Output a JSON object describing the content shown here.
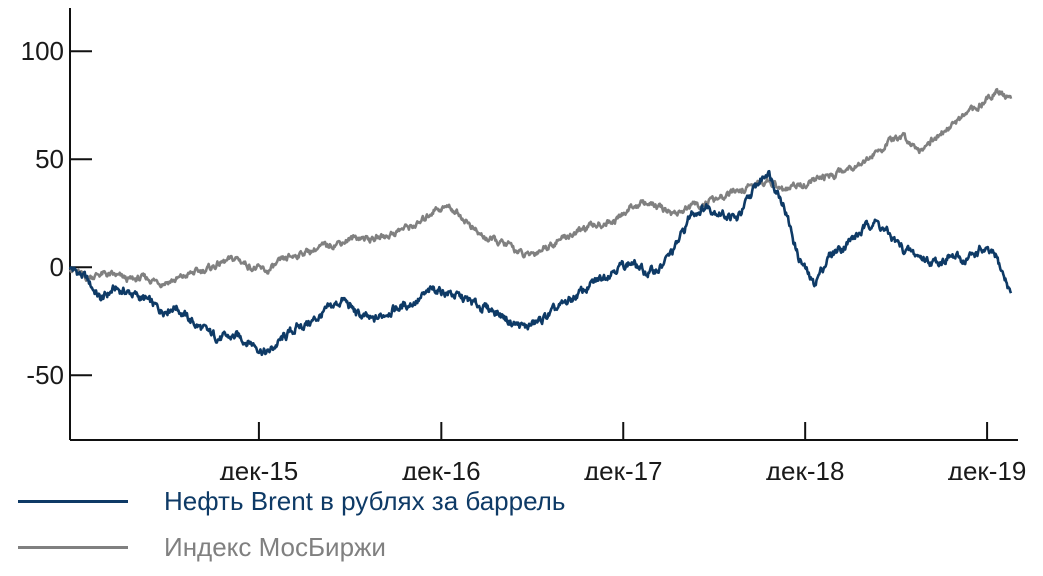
{
  "chart_data": {
    "type": "line",
    "title": "",
    "xlabel": "",
    "ylabel": "",
    "ylim": [
      -80,
      120
    ],
    "xlim": [
      "2014-12-01",
      "2020-02-15"
    ],
    "yticks": [
      100,
      50,
      0,
      -50
    ],
    "ytick_labels": [
      "100",
      "50",
      "0",
      "-50"
    ],
    "xticks": [
      "2015-12",
      "2016-12",
      "2017-12",
      "2018-12",
      "2019-12"
    ],
    "xtick_labels": [
      "дек-15",
      "дек-16",
      "дек-17",
      "дек-18",
      "дек-19"
    ],
    "grid": false,
    "legend_position": "bottom",
    "series": [
      {
        "name": "Нефть Brent в рублях за баррель",
        "color": "#0e3a66",
        "points": [
          [
            "2014-12-01",
            0
          ],
          [
            "2015-01-01",
            -5
          ],
          [
            "2015-02-01",
            -15
          ],
          [
            "2015-03-01",
            -10
          ],
          [
            "2015-04-01",
            -12
          ],
          [
            "2015-05-01",
            -15
          ],
          [
            "2015-06-01",
            -20
          ],
          [
            "2015-07-01",
            -18
          ],
          [
            "2015-08-01",
            -25
          ],
          [
            "2015-09-01",
            -30
          ],
          [
            "2015-10-01",
            -33
          ],
          [
            "2015-11-01",
            -32
          ],
          [
            "2015-12-01",
            -35
          ],
          [
            "2016-01-01",
            -40
          ],
          [
            "2016-02-01",
            -33
          ],
          [
            "2016-03-01",
            -28
          ],
          [
            "2016-04-01",
            -25
          ],
          [
            "2016-05-01",
            -20
          ],
          [
            "2016-06-01",
            -15
          ],
          [
            "2016-07-01",
            -22
          ],
          [
            "2016-08-01",
            -25
          ],
          [
            "2016-09-01",
            -20
          ],
          [
            "2016-10-01",
            -18
          ],
          [
            "2016-11-01",
            -15
          ],
          [
            "2016-12-01",
            -10
          ],
          [
            "2017-01-01",
            -12
          ],
          [
            "2017-02-01",
            -15
          ],
          [
            "2017-03-01",
            -18
          ],
          [
            "2017-04-01",
            -20
          ],
          [
            "2017-05-01",
            -25
          ],
          [
            "2017-06-01",
            -28
          ],
          [
            "2017-07-01",
            -25
          ],
          [
            "2017-08-01",
            -20
          ],
          [
            "2017-09-01",
            -15
          ],
          [
            "2017-10-01",
            -10
          ],
          [
            "2017-11-01",
            -5
          ],
          [
            "2017-12-01",
            0
          ],
          [
            "2018-01-01",
            2
          ],
          [
            "2018-02-01",
            -3
          ],
          [
            "2018-03-01",
            0
          ],
          [
            "2018-04-01",
            10
          ],
          [
            "2018-05-01",
            25
          ],
          [
            "2018-06-01",
            28
          ],
          [
            "2018-07-01",
            25
          ],
          [
            "2018-08-01",
            22
          ],
          [
            "2018-09-01",
            35
          ],
          [
            "2018-10-01",
            45
          ],
          [
            "2018-11-01",
            30
          ],
          [
            "2018-12-01",
            5
          ],
          [
            "2019-01-01",
            -8
          ],
          [
            "2019-02-01",
            5
          ],
          [
            "2019-03-01",
            10
          ],
          [
            "2019-04-01",
            15
          ],
          [
            "2019-05-01",
            22
          ],
          [
            "2019-06-01",
            15
          ],
          [
            "2019-07-01",
            8
          ],
          [
            "2019-08-01",
            5
          ],
          [
            "2019-09-01",
            2
          ],
          [
            "2019-10-01",
            5
          ],
          [
            "2019-11-01",
            3
          ],
          [
            "2019-12-01",
            8
          ],
          [
            "2020-01-01",
            5
          ],
          [
            "2020-02-01",
            -12
          ]
        ]
      },
      {
        "name": "Индекс МосБиржи",
        "color": "#808080",
        "points": [
          [
            "2014-12-01",
            0
          ],
          [
            "2015-01-01",
            -5
          ],
          [
            "2015-02-01",
            -3
          ],
          [
            "2015-03-01",
            -4
          ],
          [
            "2015-04-01",
            -6
          ],
          [
            "2015-05-01",
            -5
          ],
          [
            "2015-06-01",
            -7
          ],
          [
            "2015-07-01",
            -6
          ],
          [
            "2015-08-01",
            -3
          ],
          [
            "2015-09-01",
            -1
          ],
          [
            "2015-10-01",
            2
          ],
          [
            "2015-11-01",
            4
          ],
          [
            "2015-12-01",
            0
          ],
          [
            "2016-01-01",
            -2
          ],
          [
            "2016-02-01",
            3
          ],
          [
            "2016-03-01",
            6
          ],
          [
            "2016-04-01",
            8
          ],
          [
            "2016-05-01",
            10
          ],
          [
            "2016-06-01",
            12
          ],
          [
            "2016-07-01",
            14
          ],
          [
            "2016-08-01",
            13
          ],
          [
            "2016-09-01",
            15
          ],
          [
            "2016-10-01",
            18
          ],
          [
            "2016-11-01",
            20
          ],
          [
            "2016-12-01",
            27
          ],
          [
            "2017-01-01",
            28
          ],
          [
            "2017-02-01",
            22
          ],
          [
            "2017-03-01",
            15
          ],
          [
            "2017-04-01",
            12
          ],
          [
            "2017-05-01",
            10
          ],
          [
            "2017-06-01",
            5
          ],
          [
            "2017-07-01",
            8
          ],
          [
            "2017-08-01",
            12
          ],
          [
            "2017-09-01",
            15
          ],
          [
            "2017-10-01",
            18
          ],
          [
            "2017-11-01",
            20
          ],
          [
            "2017-12-01",
            22
          ],
          [
            "2018-01-01",
            28
          ],
          [
            "2018-02-01",
            30
          ],
          [
            "2018-03-01",
            27
          ],
          [
            "2018-04-01",
            25
          ],
          [
            "2018-05-01",
            28
          ],
          [
            "2018-06-01",
            30
          ],
          [
            "2018-07-01",
            32
          ],
          [
            "2018-08-01",
            35
          ],
          [
            "2018-09-01",
            38
          ],
          [
            "2018-10-01",
            40
          ],
          [
            "2018-11-01",
            35
          ],
          [
            "2018-12-01",
            38
          ],
          [
            "2019-01-01",
            40
          ],
          [
            "2019-02-01",
            42
          ],
          [
            "2019-03-01",
            45
          ],
          [
            "2019-04-01",
            48
          ],
          [
            "2019-05-01",
            52
          ],
          [
            "2019-06-01",
            58
          ],
          [
            "2019-07-01",
            60
          ],
          [
            "2019-08-01",
            55
          ],
          [
            "2019-09-01",
            60
          ],
          [
            "2019-10-01",
            65
          ],
          [
            "2019-11-01",
            70
          ],
          [
            "2019-12-01",
            75
          ],
          [
            "2020-01-01",
            82
          ],
          [
            "2020-02-01",
            78
          ]
        ]
      }
    ]
  }
}
